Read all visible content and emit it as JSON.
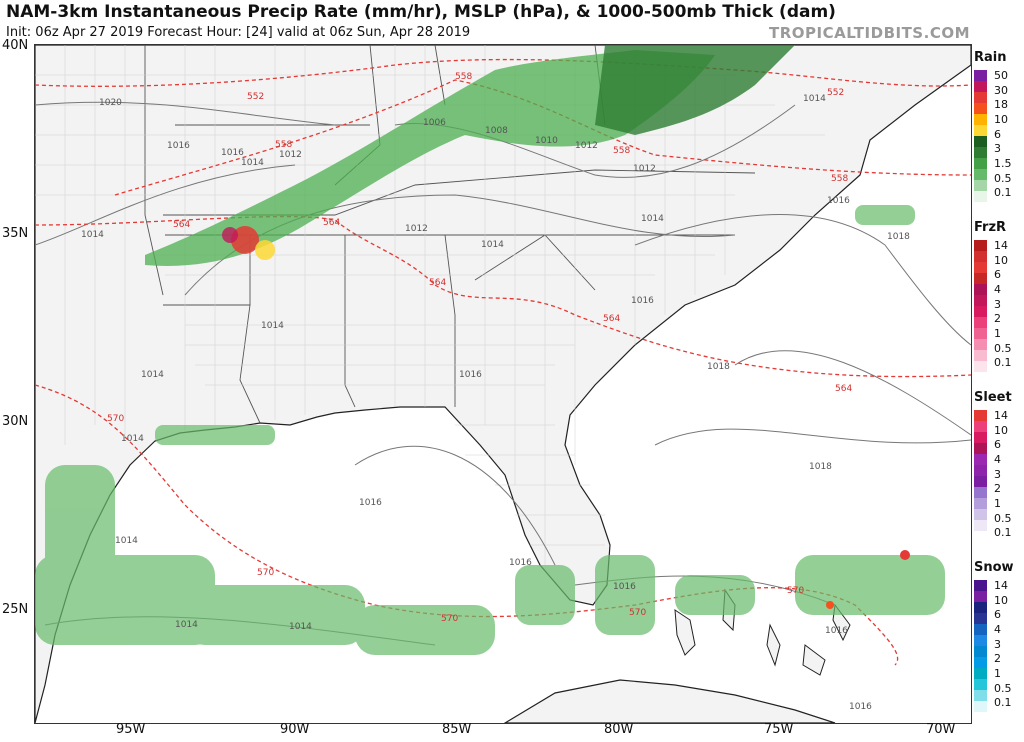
{
  "header": {
    "title": "NAM-3km Instantaneous Precip Rate (mm/hr), MSLP (hPa), & 1000-500mb Thick (dam)",
    "subtitle": "Init: 06z Apr 27 2019   Forecast Hour: [24]   valid at 06z Sun, Apr 28 2019",
    "brand": "TROPICALTIDBITS.COM"
  },
  "axes": {
    "lat_labels": [
      "40N",
      "35N",
      "30N",
      "25N"
    ],
    "lon_labels": [
      "95W",
      "90W",
      "85W",
      "80W",
      "75W",
      "70W"
    ]
  },
  "isobars": [
    "1020",
    "1018",
    "1016",
    "1014",
    "1012",
    "1012",
    "1008",
    "1006",
    "1010",
    "1012",
    "1012",
    "1014",
    "1014",
    "1012",
    "1014",
    "1016",
    "1016",
    "1018",
    "1018",
    "1018",
    "1014",
    "1014",
    "1014",
    "1014",
    "1016",
    "1014",
    "1016",
    "1016",
    "1016",
    "1016",
    "1014",
    "1014",
    "1016"
  ],
  "thickness": [
    "552",
    "552",
    "558",
    "558",
    "558",
    "558",
    "564",
    "564",
    "564",
    "564",
    "564",
    "570",
    "570",
    "570",
    "570",
    "570"
  ],
  "legend": {
    "rain": {
      "title": "Rain",
      "labels": [
        "50",
        "30",
        "18",
        "10",
        "6",
        "3",
        "1.5",
        "0.5",
        "0.1"
      ],
      "colors": [
        "#7b1fa2",
        "#c2185b",
        "#e53935",
        "#f4511e",
        "#ffb300",
        "#fdd835",
        "#1b5e20",
        "#2e7d32",
        "#43a047",
        "#66bb6a",
        "#a5d6a7",
        "#e8f5e9"
      ]
    },
    "frzr": {
      "title": "FrzR",
      "labels": [
        "14",
        "10",
        "6",
        "4",
        "3",
        "2",
        "1",
        "0.5",
        "0.1"
      ],
      "colors": [
        "#b71c1c",
        "#d32f2f",
        "#e53935",
        "#c62828",
        "#ad1457",
        "#c2185b",
        "#d81b60",
        "#ec407a",
        "#f06292",
        "#f48fb1",
        "#f8bbd0",
        "#fce4ec"
      ]
    },
    "sleet": {
      "title": "Sleet",
      "labels": [
        "14",
        "10",
        "6",
        "4",
        "3",
        "2",
        "1",
        "0.5",
        "0.1"
      ],
      "colors": [
        "#e53935",
        "#ec407a",
        "#d81b60",
        "#ad1457",
        "#9c27b0",
        "#8e24aa",
        "#7b1fa2",
        "#9575cd",
        "#b39ddb",
        "#d1c4e9",
        "#ede7f6",
        "#ffffff"
      ]
    },
    "snow": {
      "title": "Snow",
      "labels": [
        "14",
        "10",
        "6",
        "4",
        "3",
        "2",
        "1",
        "0.5",
        "0.1"
      ],
      "colors": [
        "#4a148c",
        "#7b1fa2",
        "#1a237e",
        "#283593",
        "#1565c0",
        "#1e88e5",
        "#0288d1",
        "#039be5",
        "#00acc1",
        "#26c6da",
        "#80deea",
        "#e0f7fa"
      ]
    }
  }
}
